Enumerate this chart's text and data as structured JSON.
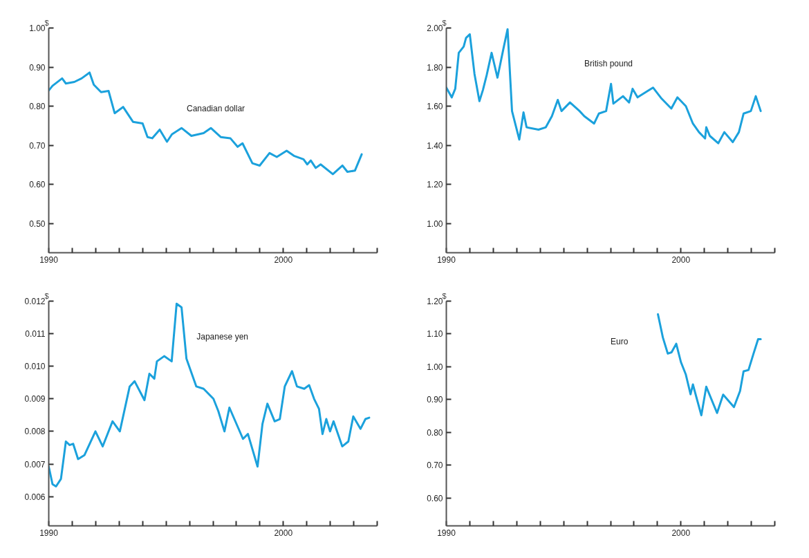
{
  "chart_data": [
    {
      "type": "line",
      "ylabel": "$",
      "xlim": [
        1990,
        2004
      ],
      "ylim": [
        0.425,
        1.0
      ],
      "xticks": [
        1990,
        {
          "value": 1991,
          "label": null
        },
        {
          "value": 1992,
          "label": null
        },
        {
          "value": 1993,
          "label": null
        },
        {
          "value": 1994,
          "label": null
        },
        {
          "value": 1995,
          "label": null
        },
        {
          "value": 1996,
          "label": null
        },
        {
          "value": 1997,
          "label": null
        },
        {
          "value": 1998,
          "label": null
        },
        {
          "value": 1999,
          "label": null
        },
        2000,
        {
          "value": 2001,
          "label": null
        },
        {
          "value": 2002,
          "label": null
        },
        {
          "value": 2003,
          "label": null
        },
        {
          "value": 2004,
          "label": null
        }
      ],
      "yticks": [
        {
          "value": 0.5,
          "label": "0.50"
        },
        {
          "value": 0.6,
          "label": "0.60"
        },
        {
          "value": 0.7,
          "label": "0.70"
        },
        {
          "value": 0.8,
          "label": "0.80"
        },
        {
          "value": 0.9,
          "label": "0.90"
        },
        {
          "value": 1.0,
          "label": "1.00"
        }
      ],
      "grid": false,
      "series": [
        {
          "name": "Canadian dollar",
          "color": "#1ba1dc",
          "x": [
            1990,
            1990.16,
            1990.57,
            1990.73,
            1991.09,
            1991.4,
            1991.74,
            1991.92,
            1992.23,
            1992.55,
            1992.81,
            1993.17,
            1993.59,
            1994.0,
            1994.21,
            1994.41,
            1994.73,
            1995.04,
            1995.25,
            1995.66,
            1996.08,
            1996.6,
            1996.91,
            1997.33,
            1997.74,
            1998.05,
            1998.26,
            1998.68,
            1998.99,
            1999.41,
            1999.72,
            2000.14,
            2000.45,
            2000.86,
            2001.02,
            2001.17,
            2001.38,
            2001.59,
            2002.11,
            2002.52,
            2002.73,
            2003.05,
            2003.34
          ],
          "values": [
            0.84,
            0.852,
            0.871,
            0.858,
            0.862,
            0.871,
            0.886,
            0.855,
            0.836,
            0.839,
            0.782,
            0.798,
            0.76,
            0.756,
            0.721,
            0.718,
            0.74,
            0.709,
            0.728,
            0.744,
            0.724,
            0.731,
            0.744,
            0.721,
            0.718,
            0.696,
            0.705,
            0.654,
            0.648,
            0.68,
            0.67,
            0.686,
            0.673,
            0.664,
            0.651,
            0.661,
            0.642,
            0.651,
            0.626,
            0.648,
            0.632,
            0.635,
            0.677
          ]
        }
      ]
    },
    {
      "type": "line",
      "ylabel": "$",
      "xlim": [
        1990,
        2004
      ],
      "ylim": [
        0.85,
        2.0
      ],
      "xticks": [
        1990,
        {
          "value": 1991,
          "label": null
        },
        {
          "value": 1992,
          "label": null
        },
        {
          "value": 1993,
          "label": null
        },
        {
          "value": 1994,
          "label": null
        },
        {
          "value": 1995,
          "label": null
        },
        {
          "value": 1996,
          "label": null
        },
        {
          "value": 1997,
          "label": null
        },
        {
          "value": 1998,
          "label": null
        },
        {
          "value": 1999,
          "label": null
        },
        2000,
        {
          "value": 2001,
          "label": null
        },
        {
          "value": 2002,
          "label": null
        },
        {
          "value": 2003,
          "label": null
        },
        {
          "value": 2004,
          "label": null
        }
      ],
      "yticks": [
        {
          "value": 1.0,
          "label": "1.00"
        },
        {
          "value": 1.2,
          "label": "1.20"
        },
        {
          "value": 1.4,
          "label": "1.40"
        },
        {
          "value": 1.6,
          "label": "1.60"
        },
        {
          "value": 1.8,
          "label": "1.80"
        },
        {
          "value": 2.0,
          "label": "2.00"
        }
      ],
      "grid": false,
      "series": [
        {
          "name": "British pound",
          "color": "#1ba1dc",
          "x": [
            1990,
            1990.23,
            1990.38,
            1990.53,
            1990.74,
            1990.84,
            1991.0,
            1991.2,
            1991.41,
            1991.56,
            1991.72,
            1991.93,
            1992.18,
            1992.44,
            1992.61,
            1992.8,
            1993.11,
            1993.29,
            1993.42,
            1993.93,
            1994.24,
            1994.5,
            1994.75,
            1994.91,
            1995.27,
            1995.68,
            1995.88,
            1996.3,
            1996.5,
            1996.81,
            1997.02,
            1997.12,
            1997.53,
            1997.79,
            1997.94,
            1998.15,
            1998.56,
            1998.81,
            1999.18,
            1999.59,
            1999.85,
            2000.21,
            2000.51,
            2000.77,
            2001.03,
            2001.08,
            2001.23,
            2001.59,
            2001.85,
            2002.21,
            2002.47,
            2002.67,
            2002.98,
            2003.19,
            2003.4
          ],
          "values": [
            1.695,
            1.645,
            1.689,
            1.873,
            1.905,
            1.949,
            1.968,
            1.765,
            1.626,
            1.683,
            1.759,
            1.873,
            1.746,
            1.898,
            1.994,
            1.575,
            1.429,
            1.568,
            1.492,
            1.48,
            1.492,
            1.549,
            1.632,
            1.575,
            1.619,
            1.575,
            1.549,
            1.511,
            1.562,
            1.575,
            1.714,
            1.613,
            1.651,
            1.619,
            1.689,
            1.645,
            1.676,
            1.695,
            1.638,
            1.588,
            1.645,
            1.6,
            1.511,
            1.467,
            1.435,
            1.492,
            1.448,
            1.41,
            1.467,
            1.416,
            1.467,
            1.562,
            1.575,
            1.651,
            1.575
          ]
        }
      ]
    },
    {
      "type": "line",
      "ylabel": "$",
      "xlim": [
        1990,
        2004
      ],
      "ylim": [
        0.0051,
        0.012
      ],
      "xticks": [
        1990,
        {
          "value": 1991,
          "label": null
        },
        {
          "value": 1992,
          "label": null
        },
        {
          "value": 1993,
          "label": null
        },
        {
          "value": 1994,
          "label": null
        },
        {
          "value": 1995,
          "label": null
        },
        {
          "value": 1996,
          "label": null
        },
        {
          "value": 1997,
          "label": null
        },
        {
          "value": 1998,
          "label": null
        },
        {
          "value": 1999,
          "label": null
        },
        2000,
        {
          "value": 2001,
          "label": null
        },
        {
          "value": 2002,
          "label": null
        },
        {
          "value": 2003,
          "label": null
        },
        {
          "value": 2004,
          "label": null
        }
      ],
      "yticks": [
        {
          "value": 0.006,
          "label": "0.006"
        },
        {
          "value": 0.007,
          "label": "0.007"
        },
        {
          "value": 0.008,
          "label": "0.008"
        },
        {
          "value": 0.009,
          "label": "0.009"
        },
        {
          "value": 0.01,
          "label": "0.010"
        },
        {
          "value": 0.011,
          "label": "0.011"
        },
        {
          "value": 0.012,
          "label": "0.012"
        }
      ],
      "grid": false,
      "series": [
        {
          "name": "Japanese yen",
          "color": "#1ba1dc",
          "x": [
            1990,
            1990.16,
            1990.31,
            1990.52,
            1990.73,
            1990.89,
            1991.04,
            1991.25,
            1991.52,
            1991.99,
            1992.3,
            1992.72,
            1993.03,
            1993.45,
            1993.66,
            1994.08,
            1994.29,
            1994.5,
            1994.61,
            1994.92,
            1995.24,
            1995.45,
            1995.66,
            1995.87,
            1996.29,
            1996.6,
            1997.02,
            1997.23,
            1997.49,
            1997.7,
            1998.28,
            1998.49,
            1998.9,
            1999.11,
            1999.32,
            1999.63,
            1999.85,
            2000.06,
            2000.37,
            2000.58,
            2000.89,
            2001.1,
            2001.31,
            2001.52,
            2001.67,
            2001.83,
            2001.99,
            2002.14,
            2002.51,
            2002.77,
            2002.98,
            2003.29,
            2003.5,
            2003.66
          ],
          "values": [
            0.00692,
            0.00638,
            0.00631,
            0.00654,
            0.00769,
            0.00758,
            0.00762,
            0.00715,
            0.00727,
            0.008,
            0.00754,
            0.00831,
            0.008,
            0.00938,
            0.00954,
            0.00896,
            0.00977,
            0.00962,
            0.01015,
            0.01031,
            0.01015,
            0.01192,
            0.01181,
            0.01023,
            0.00938,
            0.00931,
            0.009,
            0.00862,
            0.008,
            0.00873,
            0.00777,
            0.00792,
            0.00692,
            0.00823,
            0.00885,
            0.00831,
            0.00838,
            0.00938,
            0.00985,
            0.00938,
            0.00931,
            0.00942,
            0.009,
            0.00869,
            0.00792,
            0.00838,
            0.008,
            0.00831,
            0.00754,
            0.00769,
            0.00846,
            0.00808,
            0.00838,
            0.00842
          ]
        }
      ]
    },
    {
      "type": "line",
      "ylabel": "$",
      "xlim": [
        1990,
        2004
      ],
      "ylim": [
        0.515,
        1.2
      ],
      "xticks": [
        1990,
        {
          "value": 1991,
          "label": null
        },
        {
          "value": 1992,
          "label": null
        },
        {
          "value": 1993,
          "label": null
        },
        {
          "value": 1994,
          "label": null
        },
        {
          "value": 1995,
          "label": null
        },
        {
          "value": 1996,
          "label": null
        },
        {
          "value": 1997,
          "label": null
        },
        {
          "value": 1998,
          "label": null
        },
        {
          "value": 1999,
          "label": null
        },
        2000,
        {
          "value": 2001,
          "label": null
        },
        {
          "value": 2002,
          "label": null
        },
        {
          "value": 2003,
          "label": null
        },
        {
          "value": 2004,
          "label": null
        }
      ],
      "yticks": [
        {
          "value": 0.6,
          "label": "0.60"
        },
        {
          "value": 0.7,
          "label": "0.70"
        },
        {
          "value": 0.8,
          "label": "0.80"
        },
        {
          "value": 0.9,
          "label": "0.90"
        },
        {
          "value": 1.0,
          "label": "1.00"
        },
        {
          "value": 1.1,
          "label": "1.10"
        },
        {
          "value": 1.2,
          "label": "1.20"
        }
      ],
      "grid": false,
      "series": [
        {
          "name": "Euro",
          "color": "#1ba1dc",
          "x": [
            1999.02,
            1999.23,
            1999.44,
            1999.6,
            1999.8,
            2000.0,
            2000.21,
            2000.41,
            2000.51,
            2000.87,
            2001.08,
            2001.54,
            2001.8,
            2002.26,
            2002.52,
            2002.67,
            2002.88,
            2003.09,
            2003.29,
            2003.4
          ],
          "values": [
            1.16,
            1.089,
            1.04,
            1.044,
            1.07,
            1.014,
            0.976,
            0.916,
            0.946,
            0.852,
            0.939,
            0.859,
            0.915,
            0.877,
            0.926,
            0.986,
            0.99,
            1.039,
            1.084,
            1.084
          ]
        }
      ]
    }
  ]
}
